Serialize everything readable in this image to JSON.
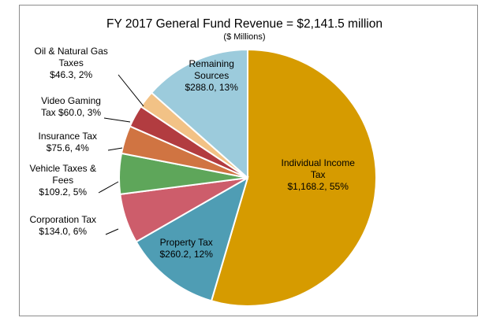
{
  "chart_data": {
    "type": "pie",
    "title": "FY 2017 General Fund Revenue = $2,141.5 million",
    "subtitle": "($ Millions)",
    "slices": [
      {
        "name": "Individual Income Tax",
        "value": 1168.2,
        "percent": 55,
        "color": "#d69b00",
        "label_lines": [
          "Individual Income",
          "Tax",
          "$1,168.2, 55%"
        ]
      },
      {
        "name": "Property Tax",
        "value": 260.2,
        "percent": 12,
        "color": "#4f9db4",
        "label_lines": [
          "Property Tax",
          "$260.2, 12%"
        ]
      },
      {
        "name": "Corporation Tax",
        "value": 134.0,
        "percent": 6,
        "color": "#cd5d6b",
        "label_lines": [
          "Corporation Tax",
          "$134.0, 6%"
        ]
      },
      {
        "name": "Vehicle Taxes & Fees",
        "value": 109.2,
        "percent": 5,
        "color": "#5ea65a",
        "label_lines": [
          "Vehicle Taxes &",
          "Fees",
          "$109.2, 5%"
        ]
      },
      {
        "name": "Insurance Tax",
        "value": 75.6,
        "percent": 4,
        "color": "#d07442",
        "label_lines": [
          "Insurance Tax",
          "$75.6, 4%"
        ]
      },
      {
        "name": "Video Gaming Tax",
        "value": 60.0,
        "percent": 3,
        "color": "#b23c40",
        "label_lines": [
          "Video Gaming",
          "Tax $60.0, 3%"
        ]
      },
      {
        "name": "Oil & Natural Gas Taxes",
        "value": 46.3,
        "percent": 2,
        "color": "#f2c286",
        "label_lines": [
          "Oil & Natural Gas",
          "Taxes",
          "$46.3, 2%"
        ]
      },
      {
        "name": "Remaining Sources",
        "value": 288.0,
        "percent": 13,
        "color": "#9ccbdc",
        "label_lines": [
          "Remaining",
          "Sources",
          "$288.0, 13%"
        ]
      }
    ],
    "start": "12 o'clock",
    "direction": "clockwise",
    "legend": "none"
  }
}
